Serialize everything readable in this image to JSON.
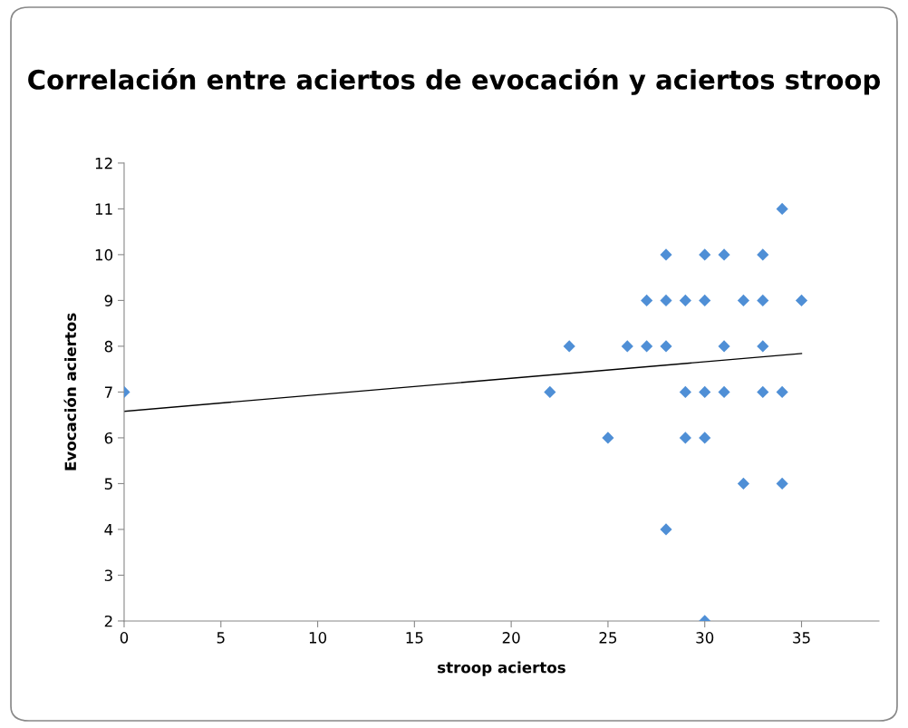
{
  "chart_data": {
    "type": "scatter",
    "title": "Correlación entre aciertos de evocación y aciertos stroop",
    "xlabel": "stroop aciertos",
    "ylabel": "Evocación aciertos",
    "xlim": [
      0,
      39
    ],
    "xticks": [
      0,
      5,
      10,
      15,
      20,
      25,
      30,
      35
    ],
    "ylim": [
      2,
      12
    ],
    "yticks": [
      2,
      3,
      4,
      5,
      6,
      7,
      8,
      9,
      10,
      11,
      12
    ],
    "grid": false,
    "legend": false,
    "series": [
      {
        "marker": "diamond",
        "color": "#4f8fd6",
        "x": [
          0,
          22,
          23,
          25,
          26,
          27,
          27,
          28,
          28,
          28,
          28,
          29,
          29,
          29,
          30,
          30,
          30,
          30,
          30,
          31,
          31,
          31,
          32,
          32,
          33,
          33,
          33,
          33,
          34,
          34,
          34,
          35
        ],
        "values": [
          7,
          7,
          8,
          6,
          8,
          9,
          8,
          10,
          9,
          8,
          4,
          9,
          7,
          6,
          10,
          9,
          7,
          6,
          2,
          10,
          8,
          7,
          9,
          5,
          10,
          9,
          8,
          7,
          11,
          7,
          5,
          9
        ]
      },
      {
        "type": "line",
        "color": "#000000",
        "x": [
          0,
          35
        ],
        "values": [
          6.58,
          7.84
        ]
      }
    ]
  }
}
